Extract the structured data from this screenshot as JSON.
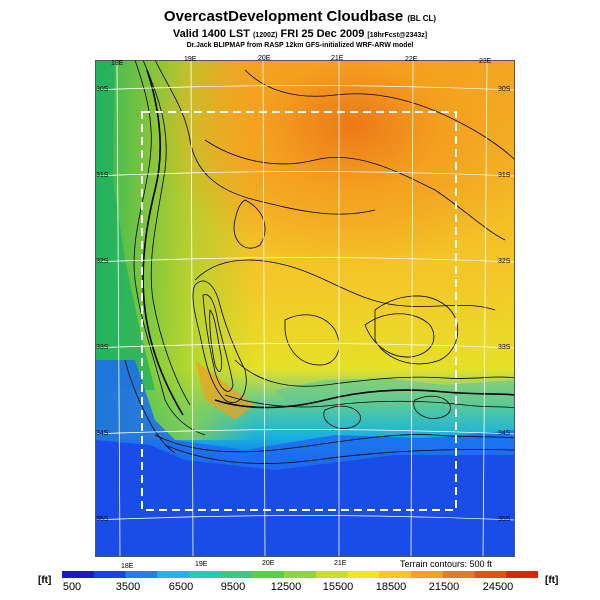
{
  "title": {
    "main": "OvercastDevelopment Cloudbase",
    "main_suffix": "(BL CL)"
  },
  "subtitle": {
    "valid": "Valid 1400 LST",
    "time_code": "(1200Z)",
    "date": "FRI 25 Dec 2009",
    "forecast": "[18hrFcst@2343z]"
  },
  "credit": "Dr.Jack BLIPMAP from RASP 12km GFS-initialized WRF-ARW model",
  "map": {
    "lon_labels_top": [
      "18E",
      "19E",
      "20E",
      "21E",
      "22E",
      "23E"
    ],
    "lon_labels_bottom": [
      "18E",
      "19E",
      "20E",
      "21E"
    ],
    "lat_labels_left": [
      "30S",
      "31S",
      "32S",
      "33S",
      "34S",
      "35S"
    ],
    "lat_labels_right": [
      "30S",
      "31S",
      "32S",
      "33S",
      "34S",
      "35S"
    ],
    "terrain_note": "Terrain contours: 500 ft"
  },
  "colorbar": {
    "unit_left": "[ft]",
    "unit_right": "[ft]",
    "ticks": [
      "500",
      "3500",
      "6500",
      "9500",
      "12500",
      "15500",
      "18500",
      "21500",
      "24500"
    ],
    "colors": [
      "#1818d0",
      "#1a40f0",
      "#1a80f8",
      "#18b8e8",
      "#1cd0b8",
      "#30d080",
      "#58d048",
      "#90d830",
      "#c8e020",
      "#f0e818",
      "#f8c818",
      "#f8a018",
      "#f07818",
      "#e85010",
      "#d82808"
    ]
  }
}
